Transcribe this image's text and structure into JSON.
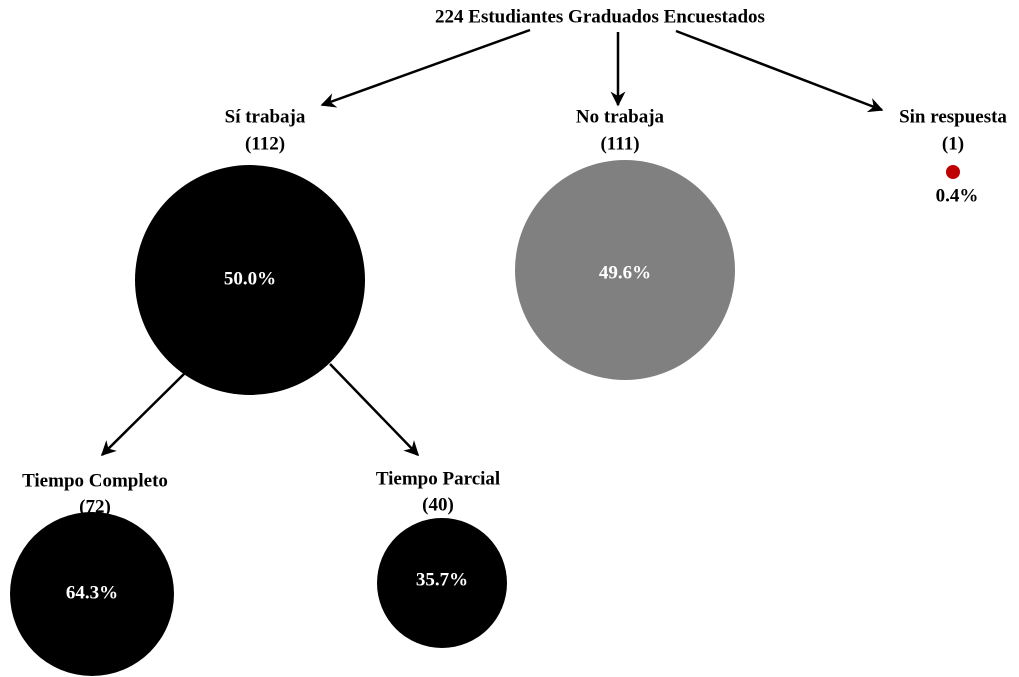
{
  "title": "224 Estudiantes Graduados Encuestados",
  "nodes": [
    {
      "label": "Sí trabaja",
      "count": "(112)",
      "percent": "50.0%"
    },
    {
      "label": "No trabaja",
      "count": "(111)",
      "percent": "49.6%"
    },
    {
      "label": "Sin respuesta",
      "count": "(1)",
      "percent": "0.4%"
    },
    {
      "label": "Tiempo Completo",
      "count": "(72)",
      "percent": "64.3%"
    },
    {
      "label": "Tiempo Parcial",
      "count": "(40)",
      "percent": "35.7%"
    }
  ]
}
